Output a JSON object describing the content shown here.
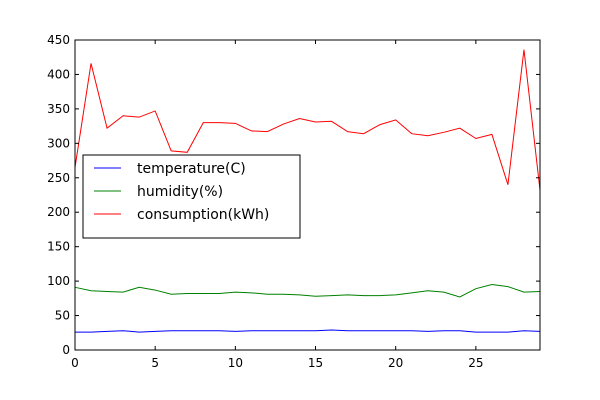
{
  "chart_data": {
    "type": "line",
    "title": "",
    "xlabel": "",
    "ylabel": "",
    "xlim": [
      0,
      29
    ],
    "ylim": [
      0,
      450
    ],
    "x_ticks": [
      "0",
      "5",
      "10",
      "15",
      "20",
      "25"
    ],
    "y_ticks": [
      "0",
      "50",
      "100",
      "150",
      "200",
      "250",
      "300",
      "350",
      "400",
      "450"
    ],
    "grid": false,
    "legend": "center-left",
    "x": [
      0,
      1,
      2,
      3,
      4,
      5,
      6,
      7,
      8,
      9,
      10,
      11,
      12,
      13,
      14,
      15,
      16,
      17,
      18,
      19,
      20,
      21,
      22,
      23,
      24,
      25,
      26,
      27,
      28,
      29
    ],
    "series": [
      {
        "name": "temperature(C)",
        "color": "#0000ff",
        "values": [
          26,
          26,
          27,
          28,
          26,
          27,
          28,
          28,
          28,
          28,
          27,
          28,
          28,
          28,
          28,
          28,
          29,
          28,
          28,
          28,
          28,
          28,
          27,
          28,
          28,
          26,
          26,
          26,
          28,
          27
        ]
      },
      {
        "name": "humidity(%)",
        "color": "#008000",
        "values": [
          91,
          86,
          85,
          84,
          91,
          87,
          81,
          82,
          82,
          82,
          84,
          83,
          81,
          81,
          80,
          78,
          79,
          80,
          79,
          79,
          80,
          83,
          86,
          84,
          77,
          89,
          95,
          92,
          84,
          85
        ]
      },
      {
        "name": "consumption(kWh)",
        "color": "#ff0000",
        "values": [
          265,
          416,
          322,
          340,
          338,
          347,
          289,
          287,
          330,
          330,
          329,
          318,
          317,
          328,
          336,
          331,
          332,
          317,
          314,
          327,
          334,
          314,
          311,
          316,
          322,
          307,
          313,
          240,
          436,
          232
        ]
      }
    ]
  }
}
